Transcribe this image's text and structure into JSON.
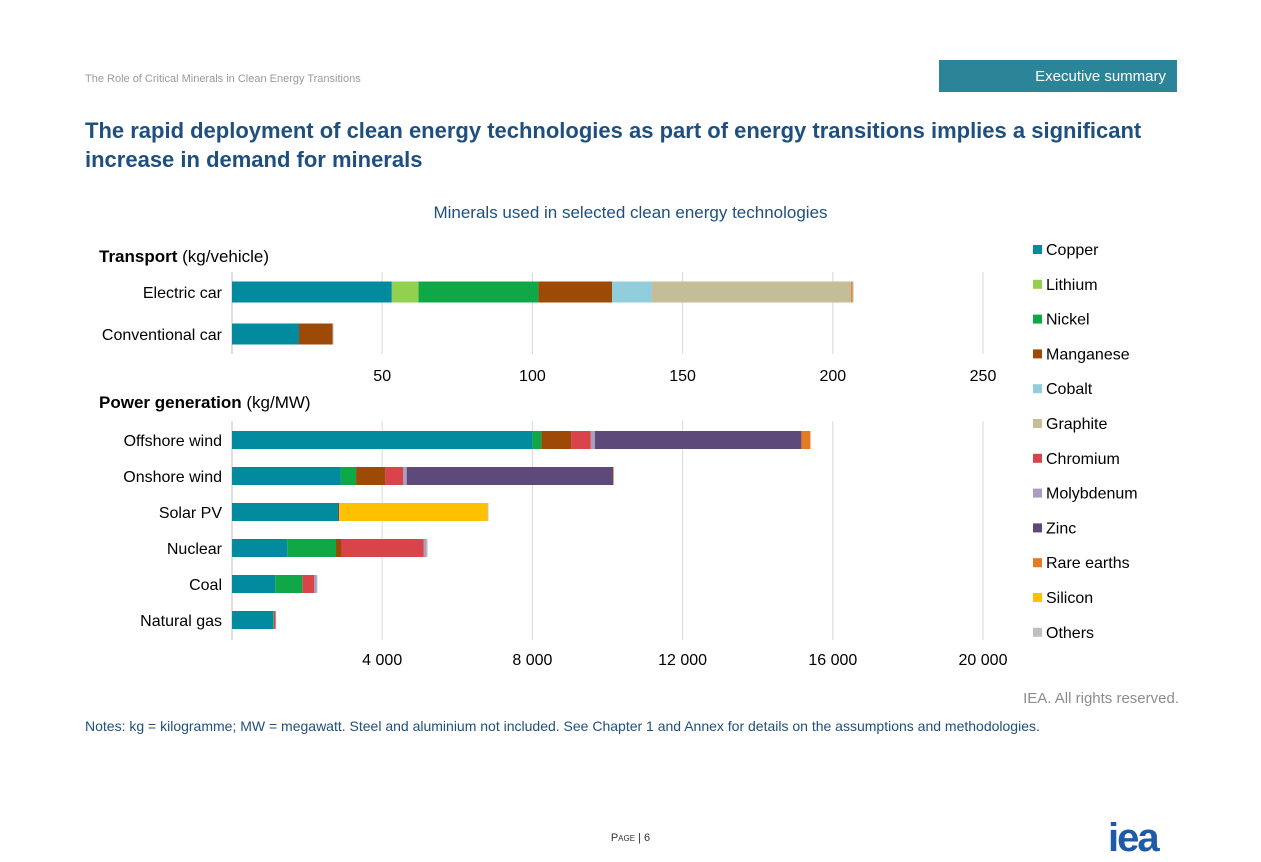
{
  "header": {
    "report_title": "The Role of Critical Minerals in Clean Energy Transitions",
    "section_tab": "Executive summary"
  },
  "page_title": "The rapid deployment of clean energy technologies as part of energy transitions implies a significant increase in demand for minerals",
  "rights": "IEA. All rights reserved.",
  "notes": "Notes: kg = kilogramme; MW = megawatt. Steel and aluminium not included. See Chapter 1 and Annex for details on the assumptions and methodologies.",
  "footer": {
    "page_word": "Page",
    "page_number": "6"
  },
  "logo_text": "iea",
  "chart_data": {
    "title": "Minerals used in selected clean energy technologies",
    "legend_position": "right",
    "grid": true,
    "series": [
      {
        "name": "Copper",
        "color": "#028a9e"
      },
      {
        "name": "Lithium",
        "color": "#92d050"
      },
      {
        "name": "Nickel",
        "color": "#10a846"
      },
      {
        "name": "Manganese",
        "color": "#9c4a05"
      },
      {
        "name": "Cobalt",
        "color": "#92cddc"
      },
      {
        "name": "Graphite",
        "color": "#c4bd97"
      },
      {
        "name": "Chromium",
        "color": "#d9444b"
      },
      {
        "name": "Molybdenum",
        "color": "#a99ebe"
      },
      {
        "name": "Zinc",
        "color": "#5e4a7a"
      },
      {
        "name": "Rare earths",
        "color": "#e67a22"
      },
      {
        "name": "Silicon",
        "color": "#ffc000"
      },
      {
        "name": "Others",
        "color": "#bfbfbf"
      }
    ],
    "panels": [
      {
        "type": "bar",
        "orientation": "horizontal",
        "stacked": true,
        "title_bold": "Transport",
        "title_unit": "(kg/vehicle)",
        "xlim": [
          0,
          250
        ],
        "ticks": [
          50,
          100,
          150,
          200,
          250
        ],
        "tick_labels": [
          "50",
          "100",
          "150",
          "200",
          "250"
        ],
        "categories": [
          "Electric car",
          "Conventional car"
        ],
        "values": {
          "Copper": [
            53.2,
            22.3
          ],
          "Lithium": [
            8.9,
            0
          ],
          "Nickel": [
            39.9,
            0
          ],
          "Manganese": [
            24.5,
            11.2
          ],
          "Cobalt": [
            13.3,
            0
          ],
          "Graphite": [
            66.3,
            0
          ],
          "Chromium": [
            0,
            0
          ],
          "Molybdenum": [
            0,
            0
          ],
          "Zinc": [
            0,
            0
          ],
          "Rare earths": [
            0.5,
            0
          ],
          "Silicon": [
            0,
            0
          ],
          "Others": [
            0.3,
            0.3
          ]
        }
      },
      {
        "type": "bar",
        "orientation": "horizontal",
        "stacked": true,
        "title_bold": "Power generation",
        "title_unit": "(kg/MW)",
        "xlim": [
          0,
          20000
        ],
        "ticks": [
          4000,
          8000,
          12000,
          16000,
          20000
        ],
        "tick_labels": [
          "4 000",
          "8 000",
          "12 000",
          "16 000",
          "20 000"
        ],
        "categories": [
          "Offshore wind",
          "Onshore wind",
          "Solar PV",
          "Nuclear",
          "Coal",
          "Natural gas"
        ],
        "values": {
          "Copper": [
            8000,
            2900,
            2822,
            1473,
            1150,
            1100
          ],
          "Lithium": [
            0,
            0,
            0,
            0,
            0,
            0
          ],
          "Nickel": [
            240,
            404,
            1,
            1297,
            721,
            16
          ],
          "Manganese": [
            790,
            780,
            0,
            148,
            5,
            0
          ],
          "Cobalt": [
            0,
            0,
            0,
            0,
            0,
            0
          ],
          "Graphite": [
            0,
            0,
            0,
            0,
            0,
            0
          ],
          "Chromium": [
            525,
            470,
            0,
            2190,
            308,
            48
          ],
          "Molybdenum": [
            109,
            99,
            0,
            70,
            66,
            0
          ],
          "Zinc": [
            5500,
            5500,
            30,
            0,
            0,
            0
          ],
          "Rare earths": [
            239,
            14,
            0,
            0,
            0,
            0
          ],
          "Silicon": [
            0,
            0,
            3950,
            0,
            0,
            0
          ],
          "Others": [
            0,
            0,
            25,
            30,
            25,
            0
          ]
        }
      }
    ]
  }
}
